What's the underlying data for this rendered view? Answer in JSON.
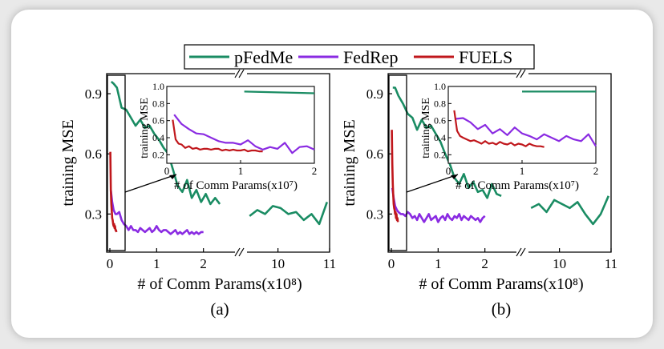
{
  "legend": [
    "pFedMe",
    "FedRep",
    "FUELS"
  ],
  "colors": {
    "pFedMe": "#1a8c63",
    "FedRep": "#8a2be2",
    "FUELS": "#c0171c"
  },
  "chart_data": [
    {
      "type": "line",
      "panel_label": "(a)",
      "xlabel": "# of Comm Params(x10⁸)",
      "ylabel": "training MSE",
      "x_broken": true,
      "x_segments": [
        [
          0,
          2.4
        ],
        [
          9.4,
          11
        ]
      ],
      "x_ticks": [
        0,
        1,
        2,
        10,
        11
      ],
      "ylim": [
        0.11,
        1.0
      ],
      "y_ticks": [
        0.3,
        0.6,
        0.9
      ],
      "series": [
        {
          "name": "pFedMe",
          "x": [
            0.03,
            0.08,
            0.15,
            0.25,
            0.35,
            0.45,
            0.55,
            0.65,
            0.75,
            0.85,
            0.95,
            1.05,
            1.15,
            1.25,
            1.35,
            1.45,
            1.55,
            1.65,
            1.75,
            1.85,
            1.95,
            2.05,
            2.15,
            2.25,
            2.35,
            9.45,
            9.6,
            9.75,
            9.9,
            10.05,
            10.2,
            10.35,
            10.5,
            10.65,
            10.8,
            10.95
          ],
          "y": [
            0.96,
            0.95,
            0.93,
            0.83,
            0.82,
            0.78,
            0.74,
            0.77,
            0.73,
            0.74,
            0.7,
            0.67,
            0.63,
            0.6,
            0.52,
            0.44,
            0.41,
            0.47,
            0.38,
            0.42,
            0.36,
            0.4,
            0.35,
            0.38,
            0.35,
            0.29,
            0.32,
            0.3,
            0.34,
            0.33,
            0.3,
            0.31,
            0.27,
            0.3,
            0.25,
            0.36
          ]
        },
        {
          "name": "FedRep",
          "x": [
            0.02,
            0.05,
            0.08,
            0.12,
            0.15,
            0.2,
            0.25,
            0.3,
            0.35,
            0.4,
            0.45,
            0.5,
            0.55,
            0.6,
            0.65,
            0.7,
            0.75,
            0.8,
            0.85,
            0.9,
            0.95,
            1.0,
            1.05,
            1.1,
            1.15,
            1.2,
            1.25,
            1.3,
            1.35,
            1.4,
            1.45,
            1.5,
            1.55,
            1.6,
            1.65,
            1.7,
            1.75,
            1.8,
            1.85,
            1.9,
            1.95,
            2.0
          ],
          "y": [
            0.42,
            0.36,
            0.32,
            0.3,
            0.3,
            0.31,
            0.27,
            0.25,
            0.24,
            0.22,
            0.24,
            0.22,
            0.22,
            0.21,
            0.23,
            0.22,
            0.21,
            0.22,
            0.23,
            0.21,
            0.22,
            0.24,
            0.22,
            0.21,
            0.22,
            0.22,
            0.21,
            0.2,
            0.21,
            0.22,
            0.2,
            0.21,
            0.2,
            0.21,
            0.22,
            0.2,
            0.21,
            0.2,
            0.21,
            0.2,
            0.21,
            0.21
          ]
        },
        {
          "name": "FUELS",
          "x": [
            0.01,
            0.02,
            0.03,
            0.04,
            0.05,
            0.06,
            0.07,
            0.08,
            0.09,
            0.1,
            0.11,
            0.12,
            0.13,
            0.14
          ],
          "y": [
            0.61,
            0.42,
            0.35,
            0.32,
            0.28,
            0.27,
            0.25,
            0.24,
            0.25,
            0.23,
            0.24,
            0.22,
            0.22,
            0.21
          ]
        }
      ],
      "inset": {
        "xlabel": "# of Comm Params(x10⁷)",
        "ylabel": "training MSE",
        "xlim": [
          0,
          2
        ],
        "x_ticks": [
          0,
          1,
          2
        ],
        "ylim": [
          0.1,
          1.0
        ],
        "y_ticks": [
          0.2,
          0.4,
          0.6,
          0.8,
          1.0
        ],
        "series": [
          {
            "name": "pFedMe",
            "x": [
              1.05,
              2.0
            ],
            "y": [
              0.94,
              0.92
            ]
          },
          {
            "name": "FedRep",
            "x": [
              0.1,
              0.2,
              0.3,
              0.4,
              0.5,
              0.6,
              0.7,
              0.8,
              0.9,
              1.0,
              1.1,
              1.2,
              1.3,
              1.4,
              1.5,
              1.6,
              1.7,
              1.8,
              1.9,
              2.0
            ],
            "y": [
              0.67,
              0.56,
              0.5,
              0.45,
              0.44,
              0.4,
              0.36,
              0.34,
              0.34,
              0.32,
              0.37,
              0.3,
              0.26,
              0.29,
              0.27,
              0.34,
              0.22,
              0.29,
              0.3,
              0.26
            ]
          },
          {
            "name": "FUELS",
            "x": [
              0.08,
              0.12,
              0.16,
              0.2,
              0.25,
              0.3,
              0.35,
              0.4,
              0.45,
              0.5,
              0.55,
              0.6,
              0.65,
              0.7,
              0.75,
              0.8,
              0.85,
              0.9,
              0.95,
              1.0,
              1.05,
              1.1,
              1.15,
              1.2,
              1.25,
              1.3
            ],
            "y": [
              0.61,
              0.38,
              0.33,
              0.32,
              0.28,
              0.3,
              0.27,
              0.28,
              0.26,
              0.27,
              0.27,
              0.26,
              0.27,
              0.27,
              0.25,
              0.26,
              0.25,
              0.26,
              0.25,
              0.25,
              0.26,
              0.24,
              0.25,
              0.25,
              0.24,
              0.24
            ]
          }
        ]
      }
    },
    {
      "type": "line",
      "panel_label": "(b)",
      "xlabel": "# of Comm Params(x10⁸)",
      "ylabel": "training MSE",
      "x_broken": true,
      "x_segments": [
        [
          0,
          2.4
        ],
        [
          9.4,
          11
        ]
      ],
      "x_ticks": [
        0,
        1,
        2,
        10,
        11
      ],
      "ylim": [
        0.11,
        1.0
      ],
      "y_ticks": [
        0.3,
        0.6,
        0.9
      ],
      "series": [
        {
          "name": "pFedMe",
          "x": [
            0.03,
            0.08,
            0.15,
            0.25,
            0.35,
            0.45,
            0.55,
            0.65,
            0.75,
            0.85,
            0.95,
            1.05,
            1.15,
            1.25,
            1.35,
            1.45,
            1.55,
            1.65,
            1.75,
            1.85,
            1.95,
            2.05,
            2.15,
            2.25,
            2.35,
            9.45,
            9.6,
            9.75,
            9.9,
            10.05,
            10.2,
            10.35,
            10.5,
            10.65,
            10.8,
            10.95
          ],
          "y": [
            0.93,
            0.93,
            0.89,
            0.85,
            0.8,
            0.78,
            0.72,
            0.77,
            0.73,
            0.74,
            0.7,
            0.66,
            0.6,
            0.55,
            0.48,
            0.45,
            0.5,
            0.43,
            0.46,
            0.41,
            0.42,
            0.38,
            0.45,
            0.4,
            0.39,
            0.33,
            0.35,
            0.31,
            0.37,
            0.35,
            0.33,
            0.36,
            0.3,
            0.25,
            0.3,
            0.39
          ]
        },
        {
          "name": "FedRep",
          "x": [
            0.02,
            0.05,
            0.08,
            0.12,
            0.15,
            0.2,
            0.25,
            0.3,
            0.35,
            0.4,
            0.45,
            0.5,
            0.55,
            0.6,
            0.65,
            0.7,
            0.75,
            0.8,
            0.85,
            0.9,
            0.95,
            1.0,
            1.05,
            1.1,
            1.15,
            1.2,
            1.25,
            1.3,
            1.35,
            1.4,
            1.45,
            1.5,
            1.55,
            1.6,
            1.65,
            1.7,
            1.75,
            1.8,
            1.85,
            1.9,
            1.95,
            2.0
          ],
          "y": [
            0.43,
            0.38,
            0.34,
            0.32,
            0.31,
            0.3,
            0.3,
            0.29,
            0.31,
            0.3,
            0.28,
            0.29,
            0.27,
            0.3,
            0.28,
            0.26,
            0.28,
            0.3,
            0.27,
            0.28,
            0.29,
            0.26,
            0.28,
            0.29,
            0.27,
            0.3,
            0.28,
            0.27,
            0.29,
            0.28,
            0.3,
            0.27,
            0.29,
            0.28,
            0.27,
            0.29,
            0.28,
            0.27,
            0.28,
            0.26,
            0.28,
            0.29
          ]
        },
        {
          "name": "FUELS",
          "x": [
            0.01,
            0.02,
            0.03,
            0.04,
            0.05,
            0.06,
            0.07,
            0.08,
            0.09,
            0.1,
            0.11,
            0.12,
            0.13,
            0.14
          ],
          "y": [
            0.72,
            0.55,
            0.45,
            0.4,
            0.35,
            0.33,
            0.32,
            0.3,
            0.31,
            0.28,
            0.3,
            0.27,
            0.28,
            0.26
          ]
        }
      ],
      "inset": {
        "xlabel": "# of Comm Params(x10⁷)",
        "ylabel": "training MSE",
        "xlim": [
          0,
          2
        ],
        "x_ticks": [
          0,
          1,
          2
        ],
        "ylim": [
          0.1,
          1.0
        ],
        "y_ticks": [
          0.2,
          0.4,
          0.6,
          0.8,
          1.0
        ],
        "series": [
          {
            "name": "pFedMe",
            "x": [
              1.0,
              2.0
            ],
            "y": [
              0.94,
              0.94
            ]
          },
          {
            "name": "FedRep",
            "x": [
              0.1,
              0.2,
              0.3,
              0.4,
              0.5,
              0.6,
              0.7,
              0.8,
              0.9,
              1.0,
              1.1,
              1.2,
              1.3,
              1.4,
              1.5,
              1.6,
              1.7,
              1.8,
              1.9,
              2.0
            ],
            "y": [
              0.62,
              0.63,
              0.58,
              0.5,
              0.55,
              0.45,
              0.5,
              0.43,
              0.52,
              0.45,
              0.42,
              0.38,
              0.44,
              0.4,
              0.36,
              0.42,
              0.38,
              0.36,
              0.44,
              0.3
            ]
          },
          {
            "name": "FUELS",
            "x": [
              0.08,
              0.12,
              0.16,
              0.2,
              0.25,
              0.3,
              0.35,
              0.4,
              0.45,
              0.5,
              0.55,
              0.6,
              0.65,
              0.7,
              0.75,
              0.8,
              0.85,
              0.9,
              0.95,
              1.0,
              1.05,
              1.1,
              1.15,
              1.2,
              1.25,
              1.3
            ],
            "y": [
              0.72,
              0.48,
              0.42,
              0.4,
              0.38,
              0.36,
              0.37,
              0.35,
              0.33,
              0.36,
              0.33,
              0.34,
              0.32,
              0.35,
              0.33,
              0.32,
              0.34,
              0.31,
              0.33,
              0.32,
              0.3,
              0.33,
              0.31,
              0.3,
              0.3,
              0.29
            ]
          }
        ]
      }
    }
  ]
}
